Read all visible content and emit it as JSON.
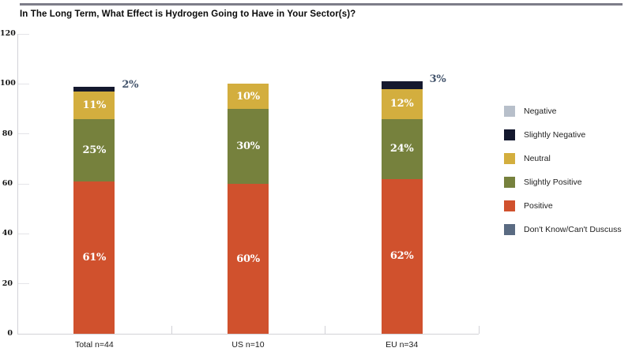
{
  "chart_data": {
    "type": "bar",
    "stacked": true,
    "title": "In The Long Term, What Effect is Hydrogen Going to Have in Your Sector(s)?",
    "categories": [
      "Total n=44",
      "US n=10",
      "EU n=34"
    ],
    "series": [
      {
        "name": "Positive",
        "color": "#d0512d",
        "values": [
          61,
          60,
          62
        ]
      },
      {
        "name": "Slightly Positive",
        "color": "#76813d",
        "values": [
          25,
          30,
          24
        ]
      },
      {
        "name": "Neutral",
        "color": "#d3ae3e",
        "values": [
          11,
          10,
          12
        ]
      },
      {
        "name": "Slightly Negative",
        "color": "#14182e",
        "values": [
          2,
          0,
          3
        ]
      }
    ],
    "segment_labels": [
      [
        "61%",
        "60%",
        "62%"
      ],
      [
        "25%",
        "30%",
        "24%"
      ],
      [
        "11%",
        "10%",
        "12%"
      ],
      [
        "",
        "",
        ""
      ]
    ],
    "annotations": [
      {
        "category_index": 0,
        "text": "2%"
      },
      {
        "category_index": 2,
        "text": "3%"
      }
    ],
    "annotation_color": "#42536b",
    "y_ticks": [
      0,
      20,
      40,
      60,
      80,
      100,
      120
    ],
    "ylim": [
      0,
      120
    ],
    "grid": "short-ticks",
    "legend_position": "right",
    "legend": [
      {
        "label": "Negative",
        "color": "#b7bfca"
      },
      {
        "label": "Slightly Negative",
        "color": "#14182e"
      },
      {
        "label": "Neutral",
        "color": "#d3ae3e"
      },
      {
        "label": "Slightly Positive",
        "color": "#76813d"
      },
      {
        "label": "Positive",
        "color": "#d0512d"
      },
      {
        "label": "Don't Know/Can't Duscuss",
        "color": "#5a6b82"
      }
    ]
  }
}
